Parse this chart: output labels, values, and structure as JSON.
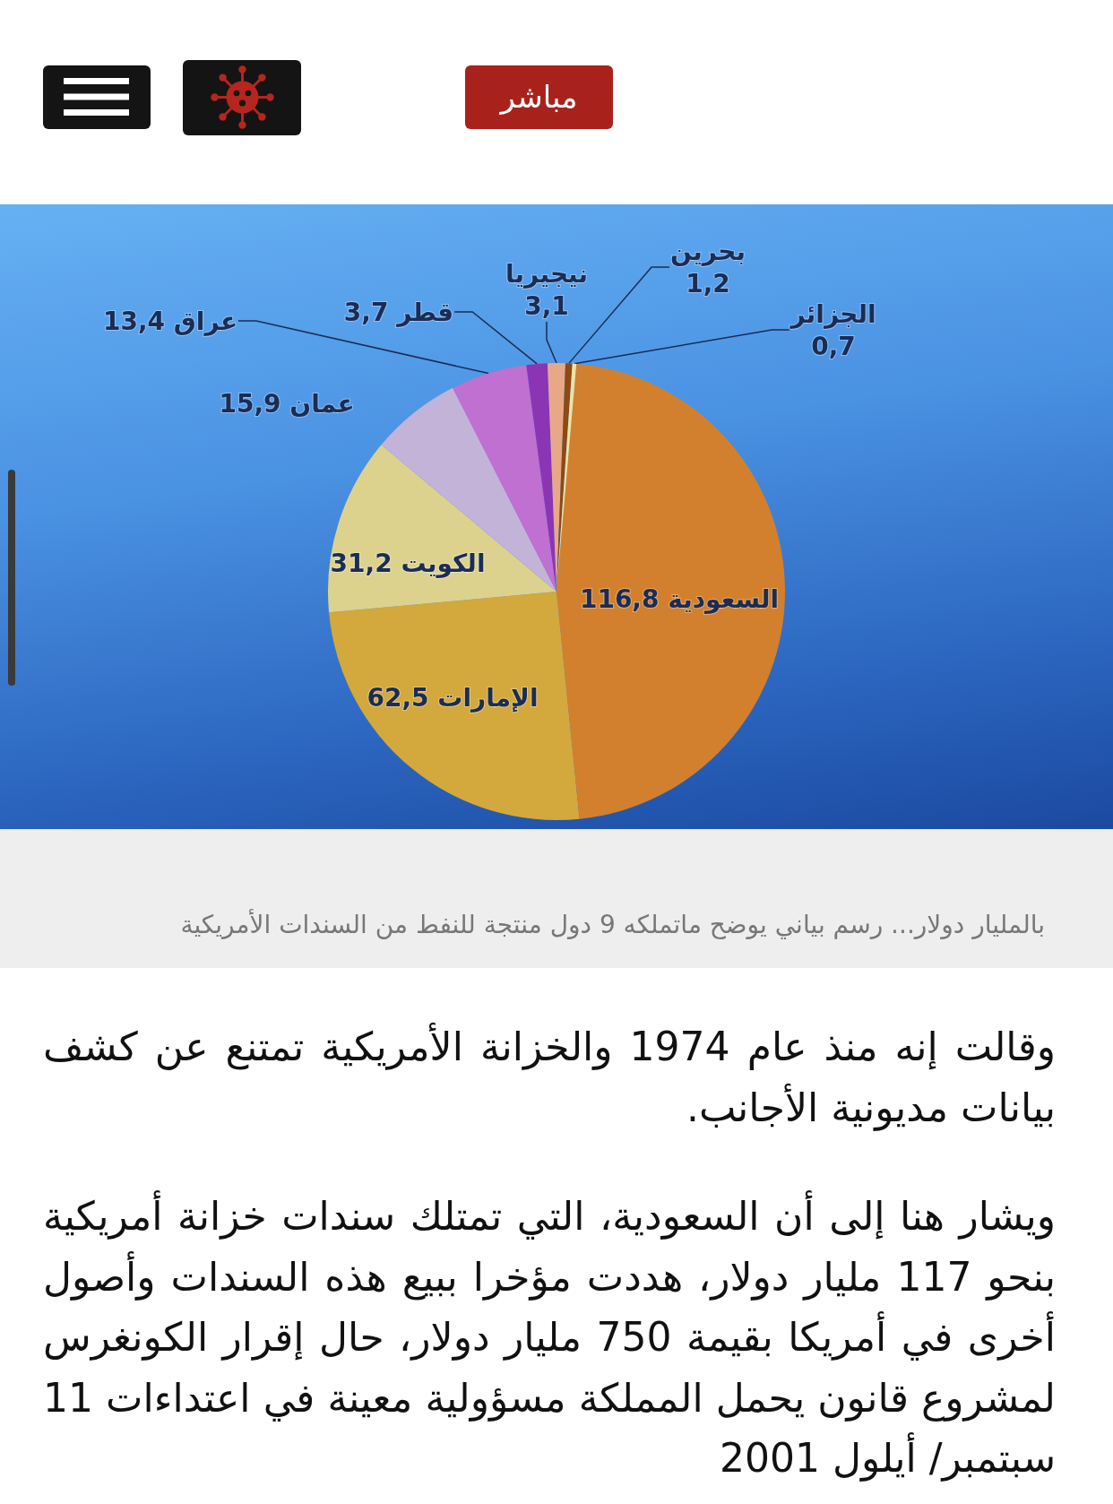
{
  "chart_data": {
    "type": "pie",
    "title": "بالمليار دولار... رسم بياني يوضح ماتملكه 9 دول منتجة للنفط من السندات الأمريكية",
    "categories": [
      "السعودية",
      "الإمارات",
      "الكويت",
      "عمان",
      "عراق",
      "قطر",
      "نيجيريا",
      "بحرين",
      "الجزائر"
    ],
    "values": [
      116.8,
      62.5,
      31.2,
      15.9,
      13.4,
      3.7,
      3.1,
      1.2,
      0.7
    ],
    "value_labels": [
      "116,8",
      "62,5",
      "31,2",
      "15,9",
      "13,4",
      "3,7",
      "3,1",
      "1,2",
      "0,7"
    ],
    "colors": [
      "#d2802e",
      "#d3a83c",
      "#dcd28e",
      "#c3b3d8",
      "#c070d0",
      "#8b35b5",
      "#e8a888",
      "#8c4a14",
      "#f0e2a0"
    ],
    "annotations": [
      "مباشر",
      "وقالت إنه منذ عام 1974 والخزانة الأمريكية تمتنع عن كشف بيانات مديونية الأجانب.",
      "ويشار هنا إلى أن السعودية، التي تمتلك سندات خزانة أمريكية بنحو 117 مليار دولار، هددت مؤخرا ببيع هذه السندات وأصول أخرى في أمريكا بقيمة 750 مليار دولار، حال إقرار الكونغرس لمشروع قانون يحمل المملكة مسؤولية معينة في اعتداءات 11 سبتمبر/ أيلول 2001"
    ]
  }
}
